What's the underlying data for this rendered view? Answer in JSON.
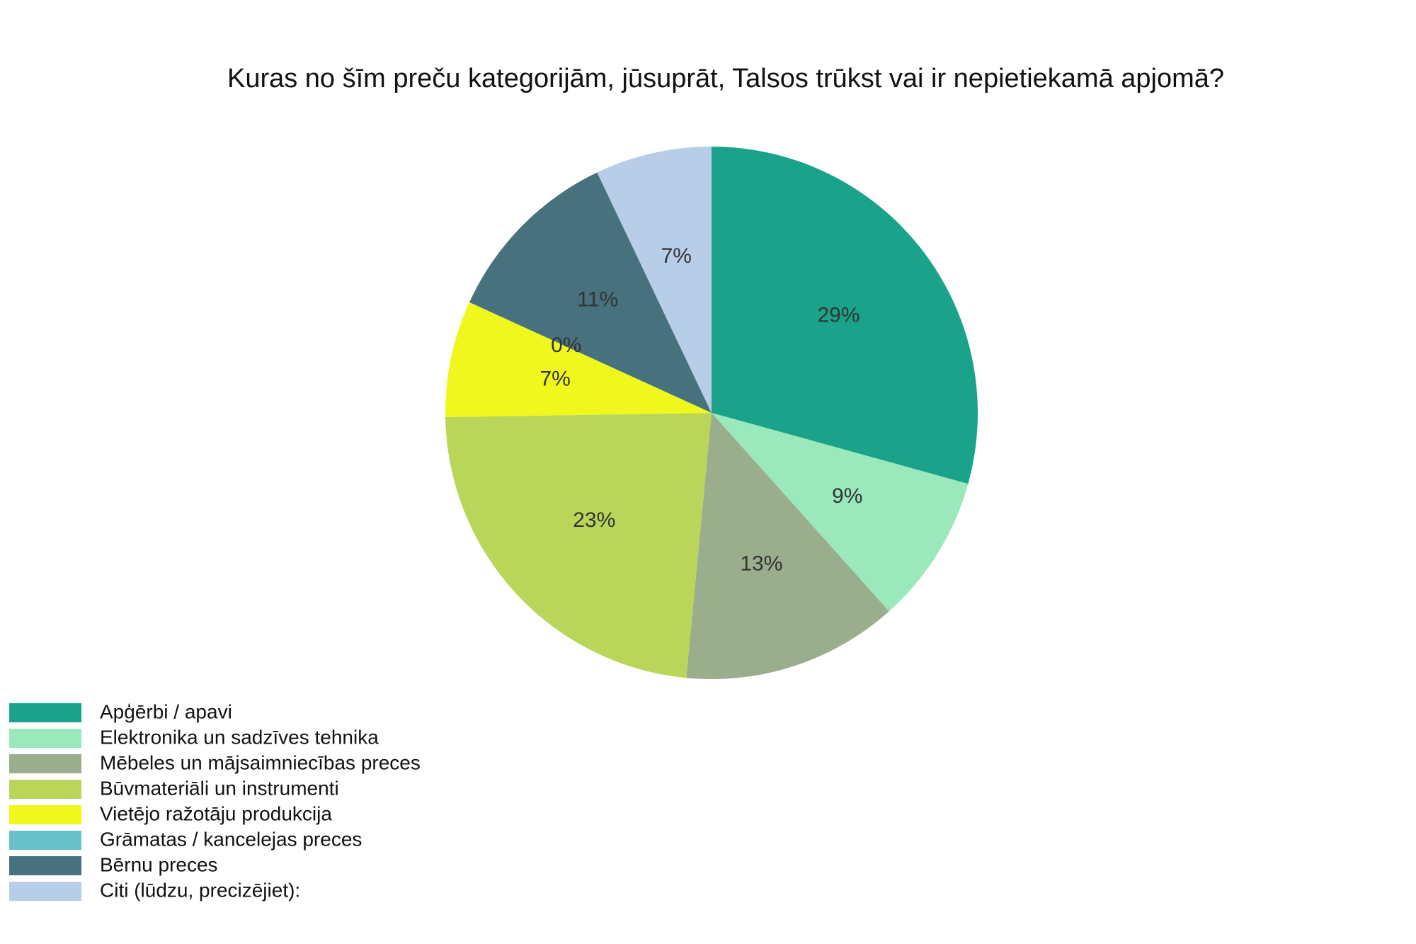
{
  "chart_data": {
    "type": "pie",
    "title": "Kuras no šīm preču kategorijām, jūsuprāt, Talsos trūkst vai ir nepietiekamā apjomā?",
    "categories": [
      "Apģērbi / apavi",
      "Elektronika un sadzīves tehnika",
      "Mēbeles un mājsaimniecības preces",
      "Būvmateriāli un instrumenti",
      "Vietējo ražotāju produkcija",
      "Grāmatas / kancelejas preces",
      "Bērnu preces",
      "Citi (lūdzu, precizējiet):"
    ],
    "values": [
      29,
      9,
      13,
      23,
      7,
      0,
      11,
      7
    ],
    "value_labels": [
      "29%",
      "9%",
      "13%",
      "23%",
      "7%",
      "0%",
      "11%",
      "7%"
    ],
    "colors": [
      "#1aa38a",
      "#9ae8bc",
      "#9aad8c",
      "#bad65a",
      "#f0f71c",
      "#66c2c8",
      "#48717e",
      "#b8cde8"
    ],
    "legend": "bottom-left"
  }
}
